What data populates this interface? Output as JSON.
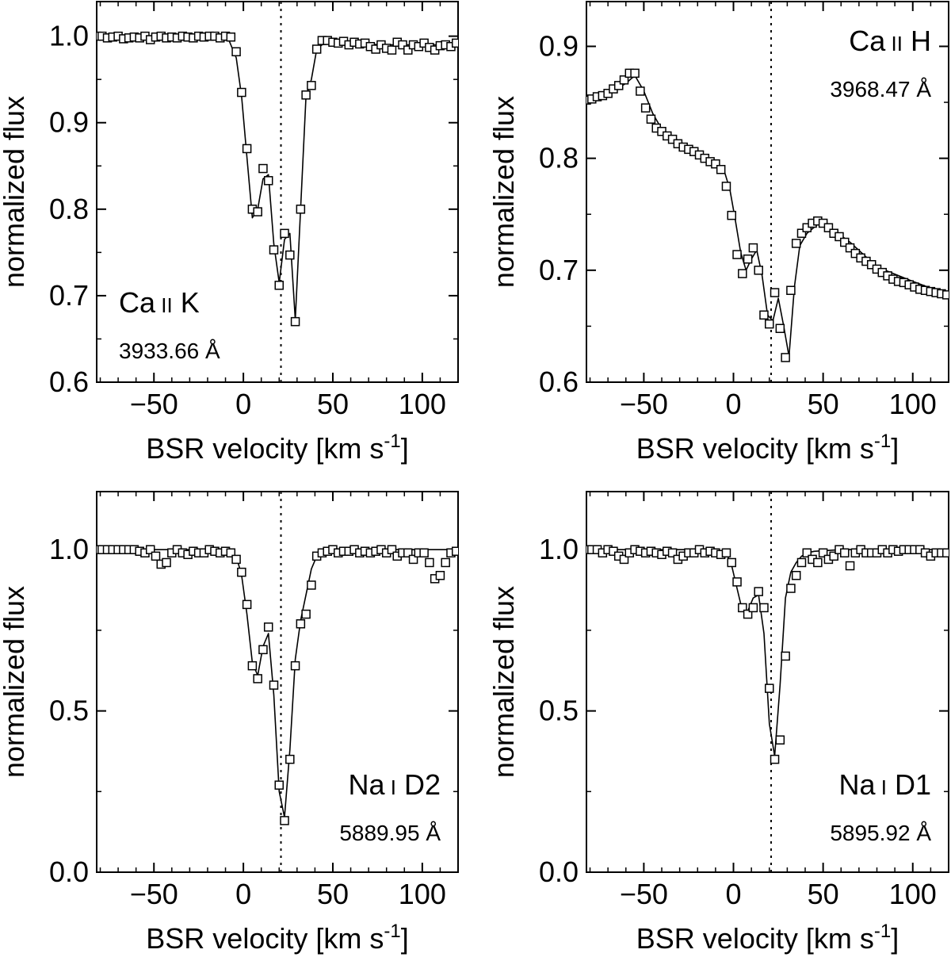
{
  "chart_data": [
    {
      "type": "scatter",
      "panel": "top-left",
      "line_name": "Ca II K",
      "wavelength": "3933.66 Å",
      "label_corner": "bottom-left",
      "xlabel": "BSR velocity [km s",
      "xlabel_sup": "-1",
      "xlabel_close": "]",
      "ylabel": "normalized flux",
      "xlim": [
        -82,
        120
      ],
      "ylim": [
        0.6,
        1.04
      ],
      "xticks": [
        -50,
        0,
        50,
        100
      ],
      "xtick_labels": [
        "−50",
        "0",
        "50",
        "100"
      ],
      "yticks": [
        0.6,
        0.7,
        0.8,
        0.9,
        1.0
      ],
      "ytick_labels": [
        "0.6",
        "0.7",
        "0.8",
        "0.9",
        "1.0"
      ],
      "reference_velocity": 21,
      "series": [
        {
          "style": "open-squares",
          "x": [
            -82,
            -79,
            -76,
            -73,
            -70,
            -67,
            -64,
            -61,
            -58,
            -55,
            -52,
            -49,
            -46,
            -43,
            -40,
            -37,
            -34,
            -31,
            -28,
            -25,
            -22,
            -19,
            -16,
            -13,
            -10,
            -7,
            -4,
            -1,
            2,
            5,
            8,
            11,
            14,
            17,
            20,
            23,
            26,
            29,
            32,
            35,
            38,
            41,
            44,
            47,
            50,
            53,
            56,
            59,
            62,
            65,
            68,
            71,
            74,
            77,
            80,
            83,
            86,
            89,
            92,
            95,
            98,
            101,
            104,
            107,
            110,
            113,
            116,
            119
          ],
          "y": [
            1.0,
            1.0,
            0.998,
            0.999,
            1.0,
            0.997,
            0.998,
            0.999,
            0.998,
            1.0,
            0.996,
            0.999,
            1.0,
            0.998,
            0.999,
            0.998,
            1.0,
            0.999,
            0.998,
            1.0,
            0.999,
            1.0,
            1.0,
            0.998,
            1.0,
            0.999,
            0.982,
            0.935,
            0.87,
            0.8,
            0.797,
            0.847,
            0.833,
            0.753,
            0.712,
            0.772,
            0.747,
            0.67,
            0.8,
            0.932,
            0.943,
            0.985,
            0.995,
            0.995,
            0.993,
            0.992,
            0.994,
            0.99,
            0.993,
            0.991,
            0.992,
            0.988,
            0.985,
            0.99,
            0.986,
            0.984,
            0.993,
            0.99,
            0.984,
            0.99,
            0.988,
            0.992,
            0.987,
            0.984,
            0.989,
            0.99,
            0.988,
            0.992
          ]
        },
        {
          "style": "line",
          "x": [
            -82,
            -30,
            -8,
            -4,
            -1,
            2,
            5,
            8,
            11,
            14,
            17,
            20,
            23,
            26,
            29,
            32,
            35,
            38,
            41,
            44,
            50,
            80,
            120
          ],
          "y": [
            1.0,
            1.0,
            0.995,
            0.975,
            0.93,
            0.86,
            0.79,
            0.8,
            0.835,
            0.84,
            0.76,
            0.715,
            0.765,
            0.772,
            0.672,
            0.8,
            0.93,
            0.95,
            0.985,
            0.99,
            0.992,
            0.99,
            0.99
          ]
        }
      ]
    },
    {
      "type": "scatter",
      "panel": "top-right",
      "line_name": "Ca II H",
      "wavelength": "3968.47 Å",
      "label_corner": "top-right",
      "xlabel": "BSR velocity [km s",
      "xlabel_sup": "-1",
      "xlabel_close": "]",
      "ylabel": "normalized flux",
      "xlim": [
        -82,
        120
      ],
      "ylim": [
        0.6,
        0.94
      ],
      "xticks": [
        -50,
        0,
        50,
        100
      ],
      "xtick_labels": [
        "−50",
        "0",
        "50",
        "100"
      ],
      "yticks": [
        0.6,
        0.7,
        0.8,
        0.9
      ],
      "ytick_labels": [
        "0.6",
        "0.7",
        "0.8",
        "0.9"
      ],
      "reference_velocity": 21,
      "series": [
        {
          "style": "open-squares",
          "x": [
            -82,
            -79,
            -76,
            -73,
            -70,
            -67,
            -64,
            -61,
            -58,
            -55,
            -52,
            -49,
            -46,
            -43,
            -40,
            -37,
            -34,
            -31,
            -28,
            -25,
            -22,
            -19,
            -16,
            -13,
            -10,
            -7,
            -4,
            -1,
            2,
            5,
            8,
            11,
            14,
            17,
            20,
            23,
            26,
            29,
            32,
            35,
            38,
            41,
            44,
            47,
            50,
            53,
            56,
            59,
            62,
            65,
            68,
            71,
            74,
            77,
            80,
            83,
            86,
            89,
            92,
            95,
            98,
            101,
            104,
            107,
            110,
            113,
            116,
            119
          ],
          "y": [
            0.852,
            0.853,
            0.855,
            0.856,
            0.858,
            0.862,
            0.865,
            0.87,
            0.876,
            0.876,
            0.86,
            0.845,
            0.835,
            0.827,
            0.824,
            0.82,
            0.817,
            0.813,
            0.81,
            0.808,
            0.806,
            0.803,
            0.8,
            0.797,
            0.795,
            0.79,
            0.775,
            0.749,
            0.714,
            0.697,
            0.71,
            0.72,
            0.7,
            0.66,
            0.652,
            0.68,
            0.648,
            0.622,
            0.682,
            0.724,
            0.733,
            0.738,
            0.742,
            0.744,
            0.742,
            0.738,
            0.733,
            0.73,
            0.725,
            0.72,
            0.715,
            0.711,
            0.708,
            0.705,
            0.701,
            0.698,
            0.695,
            0.692,
            0.69,
            0.689,
            0.687,
            0.685,
            0.683,
            0.682,
            0.681,
            0.68,
            0.679,
            0.678
          ]
        },
        {
          "style": "line",
          "x": [
            -82,
            -70,
            -60,
            -55,
            -50,
            -45,
            -40,
            -30,
            -20,
            -10,
            -5,
            -2,
            1,
            4,
            7,
            10,
            13,
            16,
            19,
            22,
            25,
            28,
            31,
            34,
            37,
            41,
            47,
            55,
            65,
            80,
            100,
            120
          ],
          "y": [
            0.851,
            0.857,
            0.867,
            0.874,
            0.86,
            0.84,
            0.826,
            0.815,
            0.806,
            0.797,
            0.788,
            0.772,
            0.745,
            0.716,
            0.7,
            0.71,
            0.718,
            0.695,
            0.66,
            0.655,
            0.675,
            0.65,
            0.623,
            0.685,
            0.722,
            0.733,
            0.741,
            0.737,
            0.725,
            0.703,
            0.69,
            0.678
          ]
        }
      ]
    },
    {
      "type": "scatter",
      "panel": "bottom-left",
      "line_name": "Na I D2",
      "wavelength": "5889.95 Å",
      "label_corner": "bottom-right",
      "xlabel": "BSR velocity [km s",
      "xlabel_sup": "-1",
      "xlabel_close": "]",
      "ylabel": "normalized flux",
      "xlim": [
        -82,
        120
      ],
      "ylim": [
        0.0,
        1.18
      ],
      "xticks": [
        -50,
        0,
        50,
        100
      ],
      "xtick_labels": [
        "−50",
        "0",
        "50",
        "100"
      ],
      "yticks": [
        0.0,
        0.5,
        1.0
      ],
      "ytick_labels": [
        "0.0",
        "0.5",
        "1.0"
      ],
      "reference_velocity": 21,
      "series": [
        {
          "style": "open-squares",
          "x": [
            -82,
            -79,
            -76,
            -73,
            -70,
            -67,
            -64,
            -61,
            -58,
            -55,
            -52,
            -49,
            -46,
            -43,
            -40,
            -37,
            -34,
            -31,
            -28,
            -25,
            -22,
            -19,
            -16,
            -13,
            -10,
            -7,
            -4,
            -1,
            2,
            5,
            8,
            11,
            14,
            17,
            20,
            23,
            26,
            29,
            32,
            35,
            38,
            41,
            44,
            47,
            50,
            53,
            56,
            59,
            62,
            65,
            68,
            71,
            74,
            77,
            80,
            83,
            86,
            89,
            92,
            95,
            98,
            101,
            104,
            107,
            110,
            113,
            116,
            119
          ],
          "y": [
            1.0,
            1.0,
            1.0,
            1.0,
            1.0,
            1.0,
            1.0,
            1.0,
            0.995,
            0.99,
            1.0,
            0.98,
            0.955,
            0.96,
            0.99,
            1.0,
            0.99,
            0.985,
            0.995,
            0.99,
            0.99,
            1.0,
            0.995,
            0.99,
            0.995,
            0.99,
            0.97,
            0.93,
            0.83,
            0.64,
            0.6,
            0.69,
            0.76,
            0.58,
            0.27,
            0.16,
            0.35,
            0.64,
            0.77,
            0.8,
            0.89,
            0.98,
            0.99,
            0.995,
            1.0,
            0.99,
            0.995,
            0.995,
            1.0,
            0.99,
            0.995,
            0.99,
            0.995,
            1.0,
            0.99,
            1.0,
            0.98,
            0.99,
            0.99,
            0.97,
            0.99,
            0.99,
            0.96,
            0.91,
            0.92,
            0.96,
            0.99,
            0.995
          ]
        },
        {
          "style": "line",
          "x": [
            -82,
            -10,
            -4,
            -1,
            2,
            5,
            8,
            11,
            14,
            17,
            20,
            23,
            26,
            29,
            32,
            35,
            38,
            41,
            45,
            60,
            120
          ],
          "y": [
            1.0,
            1.0,
            0.98,
            0.92,
            0.8,
            0.65,
            0.61,
            0.7,
            0.74,
            0.55,
            0.25,
            0.17,
            0.38,
            0.66,
            0.78,
            0.86,
            0.94,
            0.98,
            0.995,
            1.0,
            1.0
          ]
        }
      ]
    },
    {
      "type": "scatter",
      "panel": "bottom-right",
      "line_name": "Na I D1",
      "wavelength": "5895.92 Å",
      "label_corner": "bottom-right",
      "xlabel": "BSR velocity [km s",
      "xlabel_sup": "-1",
      "xlabel_close": "]",
      "ylabel": "normalized flux",
      "xlim": [
        -82,
        120
      ],
      "ylim": [
        0.0,
        1.18
      ],
      "xticks": [
        -50,
        0,
        50,
        100
      ],
      "xtick_labels": [
        "−50",
        "0",
        "50",
        "100"
      ],
      "yticks": [
        0.0,
        0.5,
        1.0
      ],
      "ytick_labels": [
        "0.0",
        "0.5",
        "1.0"
      ],
      "reference_velocity": 21,
      "series": [
        {
          "style": "open-squares",
          "x": [
            -82,
            -79,
            -76,
            -73,
            -70,
            -67,
            -64,
            -61,
            -58,
            -55,
            -52,
            -49,
            -46,
            -43,
            -40,
            -37,
            -34,
            -31,
            -28,
            -25,
            -22,
            -19,
            -16,
            -13,
            -10,
            -7,
            -4,
            -1,
            2,
            5,
            8,
            11,
            14,
            17,
            20,
            23,
            26,
            29,
            32,
            35,
            38,
            41,
            44,
            47,
            50,
            53,
            56,
            59,
            62,
            65,
            68,
            71,
            74,
            77,
            80,
            83,
            86,
            89,
            92,
            95,
            98,
            101,
            104,
            107,
            110,
            113,
            116,
            119
          ],
          "y": [
            1.0,
            1.0,
            1.0,
            0.99,
            1.0,
            0.995,
            0.98,
            0.97,
            0.99,
            1.0,
            0.995,
            0.99,
            0.995,
            0.99,
            0.985,
            0.995,
            0.99,
            0.97,
            0.98,
            0.99,
            0.99,
            1.0,
            0.99,
            0.995,
            0.99,
            0.985,
            0.99,
            0.96,
            0.9,
            0.82,
            0.8,
            0.82,
            0.87,
            0.82,
            0.57,
            0.35,
            0.41,
            0.67,
            0.88,
            0.92,
            0.96,
            0.99,
            0.97,
            0.96,
            0.99,
            0.97,
            0.98,
            1.0,
            0.99,
            0.95,
            0.99,
            1.0,
            0.99,
            0.99,
            0.99,
            1.0,
            0.99,
            1.0,
            0.995,
            1.0,
            1.0,
            1.0,
            1.0,
            0.99,
            0.98,
            0.99,
            0.99,
            0.99
          ]
        },
        {
          "style": "line",
          "x": [
            -82,
            -10,
            -4,
            -1,
            2,
            5,
            8,
            11,
            14,
            17,
            20,
            23,
            26,
            29,
            32,
            35,
            38,
            41,
            45,
            60,
            120
          ],
          "y": [
            1.0,
            1.0,
            0.99,
            0.95,
            0.88,
            0.81,
            0.81,
            0.85,
            0.86,
            0.74,
            0.46,
            0.36,
            0.58,
            0.85,
            0.93,
            0.96,
            0.98,
            0.99,
            0.995,
            1.0,
            1.0
          ]
        }
      ]
    }
  ]
}
